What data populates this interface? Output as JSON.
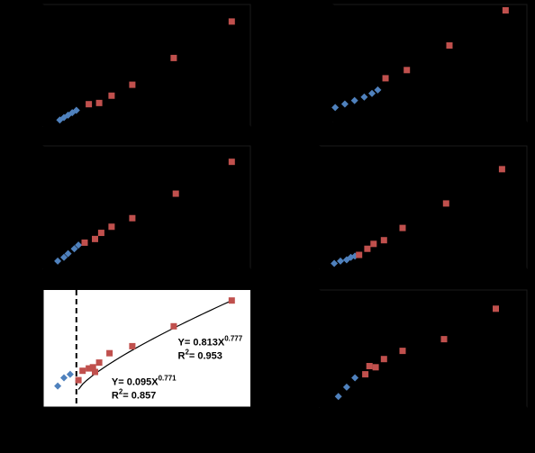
{
  "chart_data": [
    {
      "type": "scatter",
      "xlim": [
        0,
        100
      ],
      "ylim": [
        0,
        100
      ],
      "series": [
        {
          "color": "#4f81bd",
          "marker": "diamond",
          "x": [
            8,
            10,
            12,
            14,
            16
          ],
          "values": [
            5,
            7,
            9,
            11,
            13
          ]
        },
        {
          "color": "#c0504d",
          "marker": "square",
          "x": [
            22,
            27,
            33,
            43,
            63,
            91
          ],
          "values": [
            18,
            19,
            25,
            34,
            56,
            86
          ]
        }
      ]
    },
    {
      "type": "scatter",
      "xlim": [
        0,
        100
      ],
      "ylim": [
        0,
        100
      ],
      "series": [
        {
          "color": "#4f81bd",
          "marker": "diamond",
          "x": [
            1,
            6,
            11,
            16,
            20,
            23
          ],
          "values": [
            12,
            15,
            18,
            21,
            24,
            27
          ]
        },
        {
          "color": "#c0504d",
          "marker": "square",
          "x": [
            27,
            38,
            60,
            89
          ],
          "values": [
            37,
            44,
            65,
            95
          ]
        }
      ]
    },
    {
      "type": "scatter",
      "xlim": [
        0,
        100
      ],
      "ylim": [
        0,
        100
      ],
      "series": [
        {
          "color": "#4f81bd",
          "marker": "diamond",
          "x": [
            7,
            10,
            12,
            15,
            17
          ],
          "values": [
            6,
            9,
            12,
            16,
            19
          ]
        },
        {
          "color": "#c0504d",
          "marker": "square",
          "x": [
            20,
            25,
            28,
            33,
            43,
            64,
            91
          ],
          "values": [
            21,
            24,
            29,
            34,
            41,
            61,
            87
          ]
        }
      ]
    },
    {
      "type": "scatter",
      "xlim": [
        0,
        100
      ],
      "ylim": [
        0,
        100
      ],
      "series": [
        {
          "color": "#4f81bd",
          "marker": "diamond",
          "x": [
            7,
            10,
            13,
            15,
            17
          ],
          "values": [
            4,
            6,
            7,
            9,
            10
          ]
        },
        {
          "color": "#c0504d",
          "marker": "square",
          "x": [
            19,
            23,
            26,
            31,
            40,
            61,
            88
          ],
          "values": [
            11,
            16,
            20,
            23,
            33,
            53,
            81
          ]
        }
      ]
    },
    {
      "type": "scatter",
      "xlim": [
        0,
        100
      ],
      "ylim": [
        0,
        100
      ],
      "plot_background": "#ffffff",
      "vline": 16,
      "yticks": [
        0,
        12.5,
        25,
        37.5,
        50,
        62.5,
        75,
        87.5,
        100
      ],
      "annotations": [
        {
          "x": 65,
          "y": 55,
          "lines": [
            [
              "Y= 0.813X",
              "0.777"
            ],
            [
              "R",
              "2",
              "= 0.953"
            ]
          ]
        },
        {
          "x": 33,
          "y": 21,
          "lines": [
            [
              "Y= 0.095X",
              "0.771"
            ],
            [
              "R",
              "2",
              "= 0.857"
            ]
          ]
        }
      ],
      "series": [
        {
          "color": "#4f81bd",
          "marker": "diamond",
          "x": [
            7,
            10,
            13
          ],
          "values": [
            18,
            25,
            28
          ]
        },
        {
          "color": "#c0504d",
          "marker": "square",
          "x": [
            17,
            19,
            22,
            24,
            25,
            27,
            32,
            43,
            63,
            91
          ],
          "values": [
            23,
            31,
            33,
            34,
            30,
            38,
            46,
            52,
            69,
            91
          ]
        }
      ]
    },
    {
      "type": "scatter",
      "xlim": [
        0,
        100
      ],
      "ylim": [
        0,
        100
      ],
      "series": [
        {
          "color": "#4f81bd",
          "marker": "diamond",
          "x": [
            9,
            13,
            17
          ],
          "values": [
            9,
            17,
            25
          ]
        },
        {
          "color": "#c0504d",
          "marker": "square",
          "x": [
            22,
            24,
            27,
            31,
            40,
            60,
            85
          ],
          "values": [
            28,
            35,
            34,
            41,
            48,
            58,
            84
          ]
        }
      ]
    }
  ]
}
